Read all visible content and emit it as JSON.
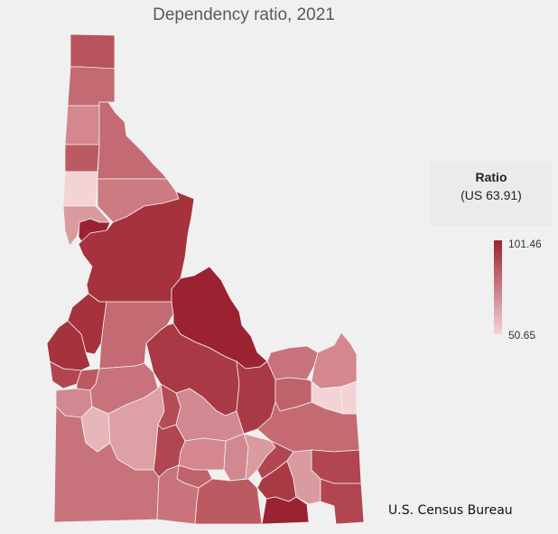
{
  "title": "Dependency ratio, 2021",
  "legend": {
    "title": "Ratio",
    "subtitle": "(US 63.91)",
    "max": "101.46",
    "min": "50.65",
    "color_max": "#9b2331",
    "color_min": "#f4d3d7"
  },
  "source": "U.S. Census Bureau",
  "chart_data": {
    "type": "choropleth",
    "region": "Idaho counties",
    "value_range": [
      50.65,
      101.46
    ],
    "colors": [
      "#9b2331",
      "#a5323d",
      "#af444c",
      "#bc5a62",
      "#c46a72",
      "#ce8189",
      "#d99aa0",
      "#e6b5b9",
      "#f4d3d7"
    ]
  }
}
